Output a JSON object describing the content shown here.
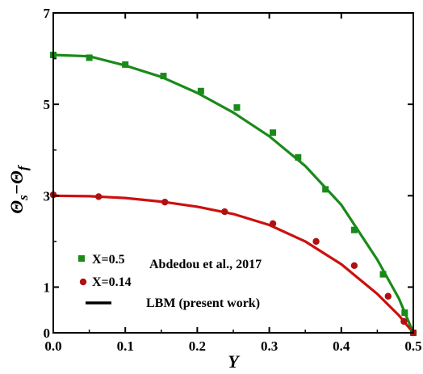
{
  "chart_data": {
    "type": "line",
    "xlabel": "Y",
    "ylabel": "Θs−Θf",
    "xlim": [
      0.0,
      0.5
    ],
    "ylim": [
      0,
      7
    ],
    "x_ticks": [
      0.0,
      0.1,
      0.2,
      0.3,
      0.4,
      0.5
    ],
    "x_tick_labels": [
      "0.0",
      "0.1",
      "0.2",
      "0.3",
      "0.4",
      "0.5"
    ],
    "y_ticks": [
      0,
      1,
      3,
      5,
      7
    ],
    "y_tick_labels": [
      "0",
      "1",
      "3",
      "5",
      "7"
    ],
    "grid": false,
    "legend_position": "bottom-left",
    "legend_title": "Abdedou et al., 2017",
    "series": [
      {
        "name": "X=0.5",
        "kind": "markers",
        "marker": "square",
        "color": "#1a8a1a",
        "points": [
          [
            0.0,
            6.08
          ],
          [
            0.05,
            6.02
          ],
          [
            0.1,
            5.87
          ],
          [
            0.153,
            5.62
          ],
          [
            0.205,
            5.29
          ],
          [
            0.255,
            4.93
          ],
          [
            0.305,
            4.38
          ],
          [
            0.34,
            3.84
          ],
          [
            0.378,
            3.14
          ],
          [
            0.418,
            2.25
          ],
          [
            0.458,
            1.28
          ],
          [
            0.488,
            0.44
          ],
          [
            0.5,
            0.0
          ]
        ]
      },
      {
        "name": "X=0.14",
        "kind": "markers",
        "marker": "circle",
        "color": "#b01010",
        "points": [
          [
            0.0,
            3.02
          ],
          [
            0.063,
            2.98
          ],
          [
            0.155,
            2.86
          ],
          [
            0.238,
            2.65
          ],
          [
            0.305,
            2.39
          ],
          [
            0.365,
            2.0
          ],
          [
            0.418,
            1.47
          ],
          [
            0.465,
            0.8
          ],
          [
            0.487,
            0.25
          ],
          [
            0.5,
            0.0
          ]
        ]
      },
      {
        "name": "LBM (present work)",
        "kind": "line",
        "color": "#000000",
        "points": []
      },
      {
        "name": "",
        "kind": "line",
        "color": "#1a8a1a",
        "points": [
          [
            0.0,
            6.08
          ],
          [
            0.05,
            6.05
          ],
          [
            0.1,
            5.85
          ],
          [
            0.15,
            5.6
          ],
          [
            0.2,
            5.25
          ],
          [
            0.25,
            4.82
          ],
          [
            0.3,
            4.3
          ],
          [
            0.35,
            3.65
          ],
          [
            0.4,
            2.8
          ],
          [
            0.45,
            1.6
          ],
          [
            0.48,
            0.75
          ],
          [
            0.5,
            0.0
          ]
        ]
      },
      {
        "name": "",
        "kind": "line",
        "color": "#cc1010",
        "points": [
          [
            0.0,
            3.0
          ],
          [
            0.05,
            2.99
          ],
          [
            0.1,
            2.95
          ],
          [
            0.15,
            2.87
          ],
          [
            0.2,
            2.76
          ],
          [
            0.25,
            2.6
          ],
          [
            0.3,
            2.36
          ],
          [
            0.35,
            2.0
          ],
          [
            0.4,
            1.5
          ],
          [
            0.45,
            0.85
          ],
          [
            0.48,
            0.38
          ],
          [
            0.5,
            0.0
          ]
        ]
      }
    ]
  }
}
